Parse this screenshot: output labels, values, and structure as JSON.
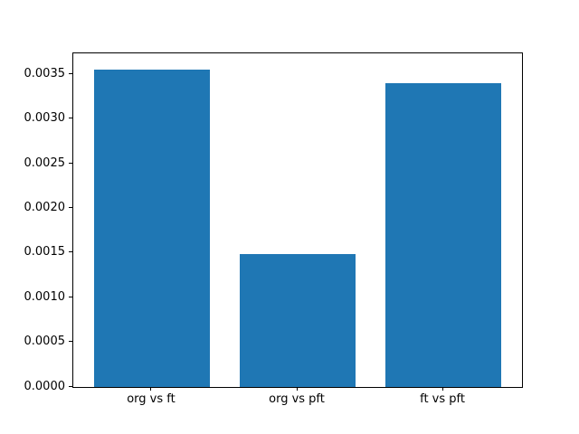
{
  "chart_data": {
    "type": "bar",
    "categories": [
      "org vs ft",
      "org vs pft",
      "ft vs pft"
    ],
    "values": [
      0.00356,
      0.00149,
      0.0034
    ],
    "title": "",
    "xlabel": "",
    "ylabel": "",
    "ylim": [
      0,
      0.003738
    ],
    "yticks": [
      0.0,
      0.0005,
      0.001,
      0.0015,
      0.002,
      0.0025,
      0.003,
      0.0035
    ],
    "ytick_labels": [
      "0.0000",
      "0.0005",
      "0.0010",
      "0.0015",
      "0.0020",
      "0.0025",
      "0.0030",
      "0.0035"
    ],
    "bar_color": "#1f77b4",
    "bar_width_fraction": 0.8,
    "x_unit_span": 3.08,
    "x_left_pad_units": 0.54,
    "grid": false,
    "legend_position": "none"
  }
}
